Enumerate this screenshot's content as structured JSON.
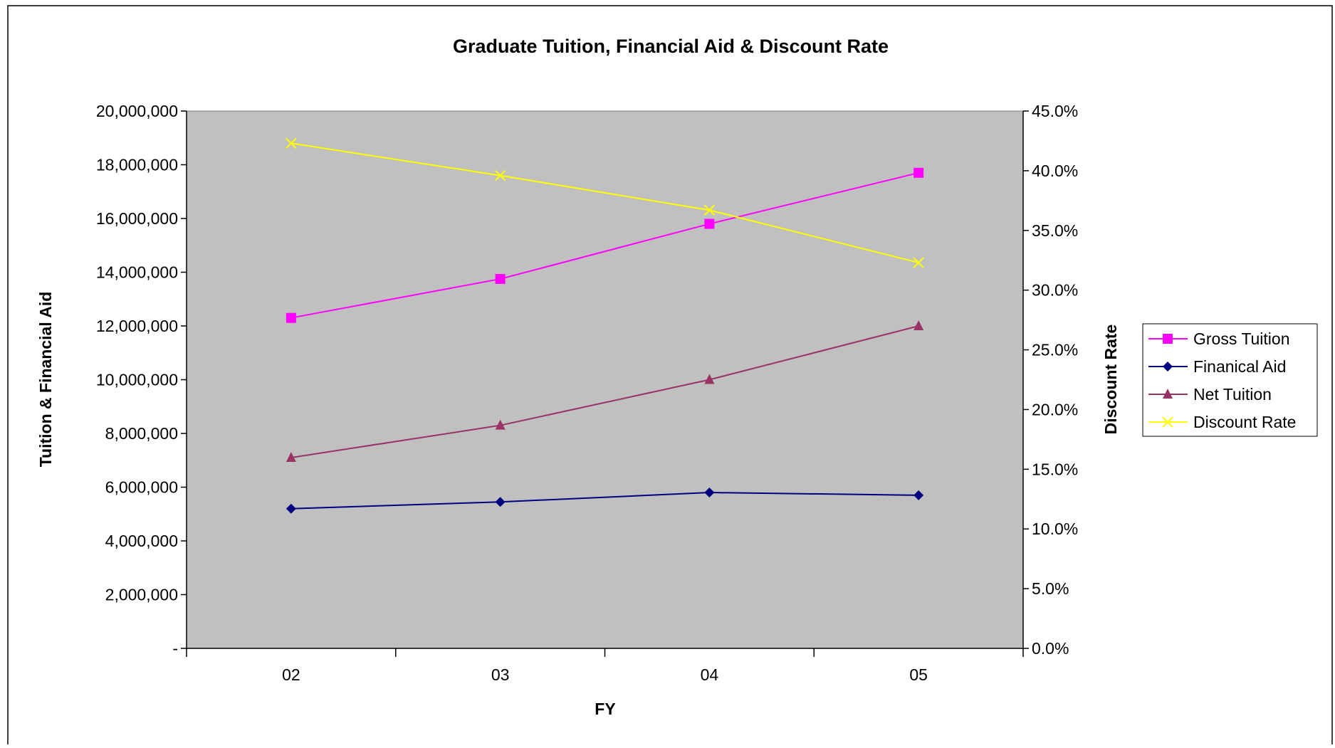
{
  "chart_data": {
    "type": "line",
    "title": "Graduate Tuition, Financial Aid & Discount Rate",
    "xlabel": "FY",
    "ylabel": "Tuition & Financial Aid",
    "y2label": "Discount Rate",
    "categories": [
      "02",
      "03",
      "04",
      "05"
    ],
    "y_ticks": [
      "-",
      "2,000,000",
      "4,000,000",
      "6,000,000",
      "8,000,000",
      "10,000,000",
      "12,000,000",
      "14,000,000",
      "16,000,000",
      "18,000,000",
      "20,000,000"
    ],
    "y2_ticks": [
      "0.0%",
      "5.0%",
      "10.0%",
      "15.0%",
      "20.0%",
      "25.0%",
      "30.0%",
      "35.0%",
      "40.0%",
      "45.0%"
    ],
    "ylim": [
      0,
      20000000
    ],
    "y2lim": [
      0,
      45
    ],
    "grid": false,
    "legend_position": "right",
    "plot_background": "#c0c0c0",
    "series": [
      {
        "name": "Gross Tuition",
        "axis": "left",
        "marker": "square",
        "color": "#ff00ff",
        "values": [
          12300000,
          13750000,
          15800000,
          17700000
        ]
      },
      {
        "name": "Finanical Aid",
        "axis": "left",
        "marker": "diamond",
        "color": "#000080",
        "values": [
          5200000,
          5450000,
          5800000,
          5700000
        ]
      },
      {
        "name": "Net Tuition",
        "axis": "left",
        "marker": "triangle",
        "color": "#993366",
        "values": [
          7100000,
          8300000,
          10000000,
          12000000
        ]
      },
      {
        "name": "Discount Rate",
        "axis": "right",
        "marker": "x",
        "color": "#ffff00",
        "values": [
          42.3,
          39.6,
          36.7,
          32.3
        ]
      }
    ]
  }
}
